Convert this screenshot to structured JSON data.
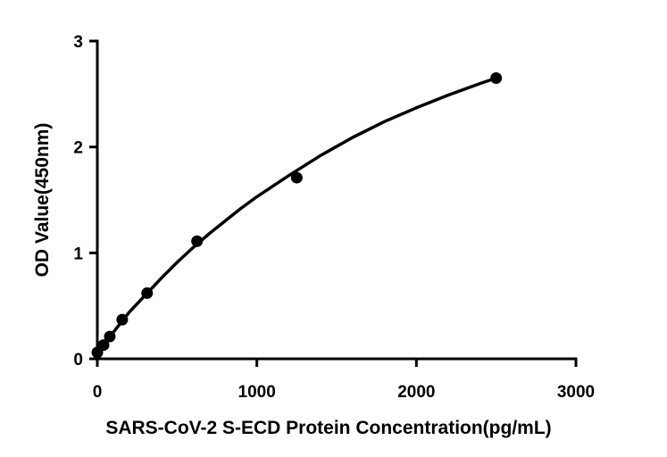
{
  "chart_data": {
    "type": "scatter",
    "title": "",
    "xlabel": "SARS-CoV-2 S-ECD Protein Concentration(pg/mL)",
    "ylabel": "OD Value(450nm)",
    "xlim": [
      0,
      3000
    ],
    "ylim": [
      0,
      3
    ],
    "xticks": [
      0,
      1000,
      2000,
      3000
    ],
    "yticks": [
      0,
      1,
      2,
      3
    ],
    "grid": false,
    "legend": "none",
    "points": [
      {
        "x": 0,
        "y": 0.06
      },
      {
        "x": 39,
        "y": 0.13
      },
      {
        "x": 78,
        "y": 0.21
      },
      {
        "x": 156,
        "y": 0.37
      },
      {
        "x": 312,
        "y": 0.62
      },
      {
        "x": 625,
        "y": 1.11
      },
      {
        "x": 1250,
        "y": 1.71
      },
      {
        "x": 2500,
        "y": 2.65
      }
    ],
    "fit_curve": {
      "x": [
        0,
        100,
        200,
        300,
        400,
        500,
        600,
        700,
        800,
        900,
        1000,
        1200,
        1400,
        1600,
        1800,
        2000,
        2200,
        2400,
        2500
      ],
      "y": [
        0.06,
        0.25,
        0.44,
        0.6,
        0.76,
        0.91,
        1.05,
        1.18,
        1.3,
        1.42,
        1.53,
        1.73,
        1.92,
        2.09,
        2.24,
        2.37,
        2.49,
        2.6,
        2.65
      ]
    },
    "colors": {
      "points": "#000000",
      "curve": "#000000",
      "axis": "#000000"
    }
  }
}
